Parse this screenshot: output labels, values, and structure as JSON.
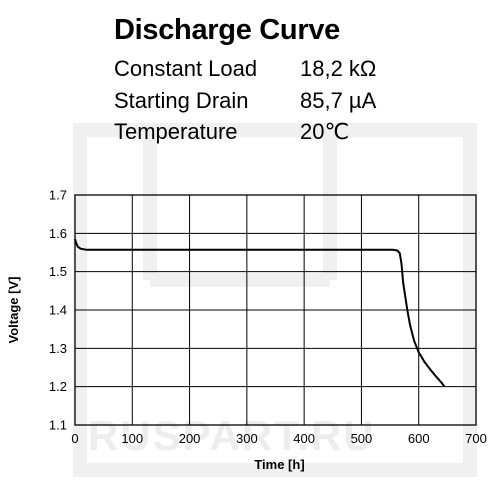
{
  "header": {
    "title": "Discharge Curve",
    "specs": [
      {
        "label": "Constant Load",
        "value": "18,2 kΩ"
      },
      {
        "label": "Starting Drain",
        "value": "85,7 µA"
      },
      {
        "label": "Temperature",
        "value": "20℃"
      }
    ]
  },
  "watermark": {
    "text": "RUSPART.RU"
  },
  "chart_data": {
    "type": "line",
    "title": "Discharge Curve",
    "xlabel": "Time [h]",
    "ylabel": "Voltage [V]",
    "xlim": [
      0,
      700
    ],
    "ylim": [
      1.1,
      1.7
    ],
    "x_ticks": [
      "0",
      "100",
      "200",
      "300",
      "400",
      "500",
      "600",
      "700"
    ],
    "y_ticks": [
      "1.1",
      "1.2",
      "1.3",
      "1.4",
      "1.5",
      "1.6",
      "1.7"
    ],
    "grid": true,
    "series": [
      {
        "color": "#000000",
        "x": [
          0,
          2,
          5,
          10,
          20,
          50,
          100,
          200,
          300,
          400,
          500,
          555,
          563,
          567,
          570,
          573,
          576,
          580,
          585,
          592,
          600,
          610,
          620,
          630,
          640,
          645
        ],
        "y": [
          1.585,
          1.575,
          1.565,
          1.56,
          1.557,
          1.557,
          1.557,
          1.557,
          1.557,
          1.557,
          1.557,
          1.557,
          1.555,
          1.548,
          1.52,
          1.47,
          1.44,
          1.4,
          1.36,
          1.32,
          1.29,
          1.265,
          1.245,
          1.227,
          1.21,
          1.2
        ]
      }
    ]
  }
}
